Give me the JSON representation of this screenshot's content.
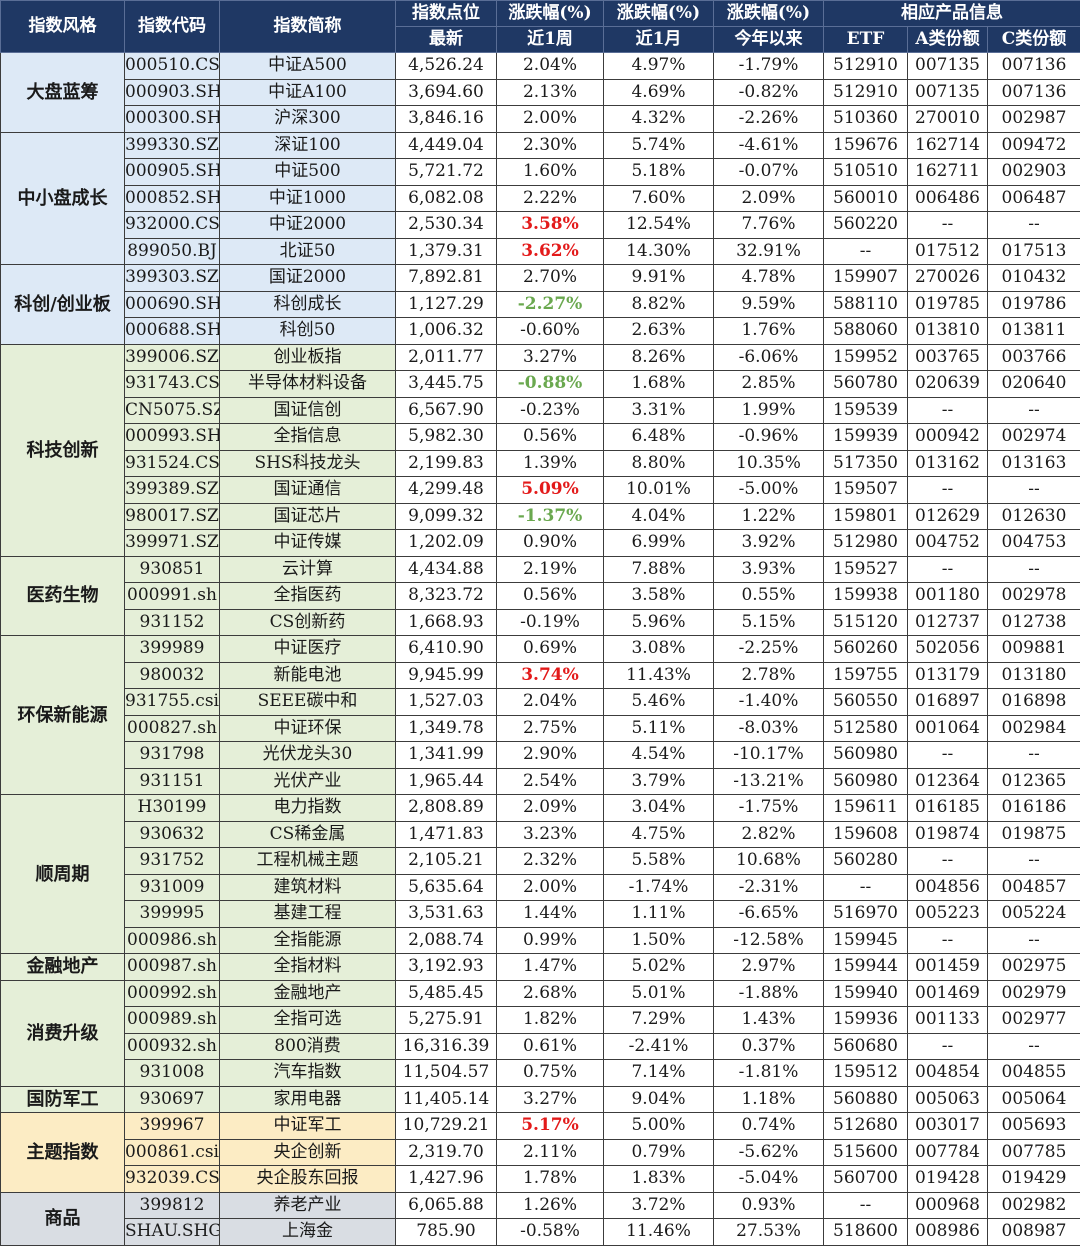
{
  "colors": {
    "header_bg": "#1f3864",
    "header_text": "#ffffff",
    "group_blue": "#dde9f6",
    "group_green": "#e5efd8",
    "group_yellow": "#fcecc4",
    "group_gray": "#d9dde3",
    "up_highlight": "#e31a1a",
    "down_highlight": "#6aa84f"
  },
  "header": {
    "style": "指数风格",
    "code": "指数代码",
    "name": "指数简称",
    "points": "指数点位",
    "change1": "涨跌幅(%)",
    "change2": "涨跌幅(%)",
    "change3": "涨跌幅(%)",
    "product": "相应产品信息",
    "latest": "最新",
    "week": "近1周",
    "month": "近1月",
    "ytd": "今年以来",
    "etf": "ETF",
    "share_a": "A类份额",
    "share_c": "C类份额"
  },
  "groups": [
    {
      "category": "大盘蓝筹",
      "color": "blue",
      "rows": [
        {
          "code": "000510.CSI",
          "name": "中证A500",
          "latest": "4,526.24",
          "week": "2.04%",
          "month": "4.97%",
          "ytd": "-1.79%",
          "etf": "512910",
          "a": "007135",
          "c": "007136"
        },
        {
          "code": "000903.SH",
          "name": "中证A100",
          "latest": "3,694.60",
          "week": "2.13%",
          "month": "4.69%",
          "ytd": "-0.82%",
          "etf": "512910",
          "a": "007135",
          "c": "007136"
        },
        {
          "code": "000300.SH",
          "name": "沪深300",
          "latest": "3,846.16",
          "week": "2.00%",
          "month": "4.32%",
          "ytd": "-2.26%",
          "etf": "510360",
          "a": "270010",
          "c": "002987"
        }
      ]
    },
    {
      "category": "中小盘成长",
      "color": "blue",
      "rows": [
        {
          "code": "399330.SZ",
          "name": "深证100",
          "latest": "4,449.04",
          "week": "2.30%",
          "month": "5.74%",
          "ytd": "-4.61%",
          "etf": "159676",
          "a": "162714",
          "c": "009472"
        },
        {
          "code": "000905.SH",
          "name": "中证500",
          "latest": "5,721.72",
          "week": "1.60%",
          "month": "5.18%",
          "ytd": "-0.07%",
          "etf": "510510",
          "a": "162711",
          "c": "002903"
        },
        {
          "code": "000852.SH",
          "name": "中证1000",
          "latest": "6,082.08",
          "week": "2.22%",
          "month": "7.60%",
          "ytd": "2.09%",
          "etf": "560010",
          "a": "006486",
          "c": "006487"
        },
        {
          "code": "932000.CSI",
          "name": "中证2000",
          "latest": "2,530.34",
          "week": "3.58%",
          "week_hl": "up",
          "month": "12.54%",
          "ytd": "7.76%",
          "etf": "560220",
          "a": "--",
          "c": "--"
        },
        {
          "code": "899050.BJ",
          "name": "北证50",
          "latest": "1,379.31",
          "week": "3.62%",
          "week_hl": "up",
          "month": "14.30%",
          "ytd": "32.91%",
          "etf": "--",
          "a": "017512",
          "c": "017513"
        }
      ]
    },
    {
      "category": "科创/创业板",
      "color": "blue",
      "rows": [
        {
          "code": "399303.SZ",
          "name": "国证2000",
          "latest": "7,892.81",
          "week": "2.70%",
          "month": "9.91%",
          "ytd": "4.78%",
          "etf": "159907",
          "a": "270026",
          "c": "010432"
        },
        {
          "code": "000690.SH",
          "name": "科创成长",
          "latest": "1,127.29",
          "week": "-2.27%",
          "week_hl": "down",
          "month": "8.82%",
          "ytd": "9.59%",
          "etf": "588110",
          "a": "019785",
          "c": "019786"
        },
        {
          "code": "000688.SH",
          "name": "科创50",
          "latest": "1,006.32",
          "week": "-0.60%",
          "month": "2.63%",
          "ytd": "1.76%",
          "etf": "588060",
          "a": "013810",
          "c": "013811"
        }
      ]
    },
    {
      "category": "科技创新",
      "color": "green",
      "rows": [
        {
          "code": "399006.SZ",
          "name": "创业板指",
          "latest": "2,011.77",
          "week": "3.27%",
          "month": "8.26%",
          "ytd": "-6.06%",
          "etf": "159952",
          "a": "003765",
          "c": "003766"
        },
        {
          "code": "931743.CSI",
          "name": "半导体材料设备",
          "latest": "3,445.75",
          "week": "-0.88%",
          "week_hl": "down",
          "month": "1.68%",
          "ytd": "2.85%",
          "etf": "560780",
          "a": "020639",
          "c": "020640"
        },
        {
          "code": "CN5075.SZ",
          "name": "国证信创",
          "latest": "6,567.90",
          "week": "-0.23%",
          "month": "3.31%",
          "ytd": "1.99%",
          "etf": "159539",
          "a": "--",
          "c": "--"
        },
        {
          "code": "000993.SH",
          "name": "全指信息",
          "latest": "5,982.30",
          "week": "0.56%",
          "month": "6.48%",
          "ytd": "-0.96%",
          "etf": "159939",
          "a": "000942",
          "c": "002974"
        },
        {
          "code": "931524.CSI",
          "name": "SHS科技龙头",
          "latest": "2,199.83",
          "week": "1.39%",
          "month": "8.80%",
          "ytd": "10.35%",
          "etf": "517350",
          "a": "013162",
          "c": "013163"
        },
        {
          "code": "399389.SZ",
          "name": "国证通信",
          "latest": "4,299.48",
          "week": "5.09%",
          "week_hl": "up",
          "month": "10.01%",
          "ytd": "-5.00%",
          "etf": "159507",
          "a": "--",
          "c": "--"
        },
        {
          "code": "980017.SZ",
          "name": "国证芯片",
          "latest": "9,099.32",
          "week": "-1.37%",
          "week_hl": "down",
          "month": "4.04%",
          "ytd": "1.22%",
          "etf": "159801",
          "a": "012629",
          "c": "012630"
        },
        {
          "code": "399971.SZ",
          "name": "中证传媒",
          "latest": "1,202.09",
          "week": "0.90%",
          "month": "6.99%",
          "ytd": "3.92%",
          "etf": "512980",
          "a": "004752",
          "c": "004753"
        }
      ]
    },
    {
      "category": "医药生物",
      "color": "green",
      "rows": [
        {
          "code": "930851",
          "name": "云计算",
          "latest": "4,434.88",
          "week": "2.19%",
          "month": "7.88%",
          "ytd": "3.93%",
          "etf": "159527",
          "a": "--",
          "c": "--"
        },
        {
          "code": "000991.sh",
          "name": "全指医药",
          "latest": "8,323.72",
          "week": "0.56%",
          "month": "3.58%",
          "ytd": "0.55%",
          "etf": "159938",
          "a": "001180",
          "c": "002978"
        },
        {
          "code": "931152",
          "name": "CS创新药",
          "latest": "1,668.93",
          "week": "-0.19%",
          "month": "5.96%",
          "ytd": "5.15%",
          "etf": "515120",
          "a": "012737",
          "c": "012738"
        }
      ]
    },
    {
      "category": "环保新能源",
      "color": "green",
      "rows": [
        {
          "code": "399989",
          "name": "中证医疗",
          "latest": "6,410.90",
          "week": "0.69%",
          "month": "3.08%",
          "ytd": "-2.25%",
          "etf": "560260",
          "a": "502056",
          "c": "009881"
        },
        {
          "code": "980032",
          "name": "新能电池",
          "latest": "9,945.99",
          "week": "3.74%",
          "week_hl": "up",
          "month": "11.43%",
          "ytd": "2.78%",
          "etf": "159755",
          "a": "013179",
          "c": "013180"
        },
        {
          "code": "931755.csi",
          "name": "SEEE碳中和",
          "latest": "1,527.03",
          "week": "2.04%",
          "month": "5.46%",
          "ytd": "-1.40%",
          "etf": "560550",
          "a": "016897",
          "c": "016898"
        },
        {
          "code": "000827.sh",
          "name": "中证环保",
          "latest": "1,349.78",
          "week": "2.75%",
          "month": "5.11%",
          "ytd": "-8.03%",
          "etf": "512580",
          "a": "001064",
          "c": "002984"
        },
        {
          "code": "931798",
          "name": "光伏龙头30",
          "latest": "1,341.99",
          "week": "2.90%",
          "month": "4.54%",
          "ytd": "-10.17%",
          "etf": "560980",
          "a": "--",
          "c": "--"
        },
        {
          "code": "931151",
          "name": "光伏产业",
          "latest": "1,965.44",
          "week": "2.54%",
          "month": "3.79%",
          "ytd": "-13.21%",
          "etf": "560980",
          "a": "012364",
          "c": "012365"
        }
      ]
    },
    {
      "category": "顺周期",
      "color": "green",
      "rows": [
        {
          "code": "H30199",
          "name": "电力指数",
          "latest": "2,808.89",
          "week": "2.09%",
          "month": "3.04%",
          "ytd": "-1.75%",
          "etf": "159611",
          "a": "016185",
          "c": "016186"
        },
        {
          "code": "930632",
          "name": "CS稀金属",
          "latest": "1,471.83",
          "week": "3.23%",
          "month": "4.75%",
          "ytd": "2.82%",
          "etf": "159608",
          "a": "019874",
          "c": "019875"
        },
        {
          "code": "931752",
          "name": "工程机械主题",
          "latest": "2,105.21",
          "week": "2.32%",
          "month": "5.58%",
          "ytd": "10.68%",
          "etf": "560280",
          "a": "--",
          "c": "--"
        },
        {
          "code": "931009",
          "name": "建筑材料",
          "latest": "5,635.64",
          "week": "2.00%",
          "month": "-1.74%",
          "ytd": "-2.31%",
          "etf": "--",
          "a": "004856",
          "c": "004857"
        },
        {
          "code": "399995",
          "name": "基建工程",
          "latest": "3,531.63",
          "week": "1.44%",
          "month": "1.11%",
          "ytd": "-6.65%",
          "etf": "516970",
          "a": "005223",
          "c": "005224"
        },
        {
          "code": "000986.sh",
          "name": "全指能源",
          "latest": "2,088.74",
          "week": "0.99%",
          "month": "1.50%",
          "ytd": "-12.58%",
          "etf": "159945",
          "a": "--",
          "c": "--"
        }
      ]
    },
    {
      "category": "金融地产",
      "color": "green",
      "rows": [
        {
          "code": "000987.sh",
          "name": "全指材料",
          "latest": "3,192.93",
          "week": "1.47%",
          "month": "5.02%",
          "ytd": "2.97%",
          "etf": "159944",
          "a": "001459",
          "c": "002975"
        }
      ]
    },
    {
      "category": "消费升级",
      "color": "green",
      "rows": [
        {
          "code": "000992.sh",
          "name": "金融地产",
          "latest": "5,485.45",
          "week": "2.68%",
          "month": "5.01%",
          "ytd": "-1.88%",
          "etf": "159940",
          "a": "001469",
          "c": "002979"
        },
        {
          "code": "000989.sh",
          "name": "全指可选",
          "latest": "5,275.91",
          "week": "1.82%",
          "month": "7.29%",
          "ytd": "1.43%",
          "etf": "159936",
          "a": "001133",
          "c": "002977"
        },
        {
          "code": "000932.sh",
          "name": "800消费",
          "latest": "16,316.39",
          "week": "0.61%",
          "month": "-2.41%",
          "ytd": "0.37%",
          "etf": "560680",
          "a": "--",
          "c": "--"
        },
        {
          "code": "931008",
          "name": "汽车指数",
          "latest": "11,504.57",
          "week": "0.75%",
          "month": "7.14%",
          "ytd": "-1.81%",
          "etf": "159512",
          "a": "004854",
          "c": "004855"
        }
      ]
    },
    {
      "category": "国防军工",
      "color": "green",
      "rows": [
        {
          "code": "930697",
          "name": "家用电器",
          "latest": "11,405.14",
          "week": "3.27%",
          "month": "9.04%",
          "ytd": "1.18%",
          "etf": "560880",
          "a": "005063",
          "c": "005064"
        }
      ]
    },
    {
      "category": "主题指数",
      "color": "yellow",
      "rows": [
        {
          "code": "399967",
          "name": "中证军工",
          "latest": "10,729.21",
          "week": "5.17%",
          "week_hl": "up",
          "month": "5.00%",
          "ytd": "0.74%",
          "etf": "512680",
          "a": "003017",
          "c": "005693"
        },
        {
          "code": "000861.csi",
          "name": "央企创新",
          "latest": "2,319.70",
          "week": "2.11%",
          "month": "0.79%",
          "ytd": "-5.62%",
          "etf": "515600",
          "a": "007784",
          "c": "007785"
        },
        {
          "code": "932039.CSI",
          "name": "央企股东回报",
          "latest": "1,427.96",
          "week": "1.78%",
          "month": "1.83%",
          "ytd": "-5.04%",
          "etf": "560700",
          "a": "019428",
          "c": "019429"
        }
      ]
    },
    {
      "category": "商品",
      "color": "gray",
      "rows": [
        {
          "code": "399812",
          "name": "养老产业",
          "latest": "6,065.88",
          "week": "1.26%",
          "month": "3.72%",
          "ytd": "0.93%",
          "etf": "--",
          "a": "000968",
          "c": "002982"
        },
        {
          "code": "SHAU.SHG",
          "name": "上海金",
          "latest": "785.90",
          "week": "-0.58%",
          "month": "11.46%",
          "ytd": "27.53%",
          "etf": "518600",
          "a": "008986",
          "c": "008987"
        }
      ]
    }
  ]
}
